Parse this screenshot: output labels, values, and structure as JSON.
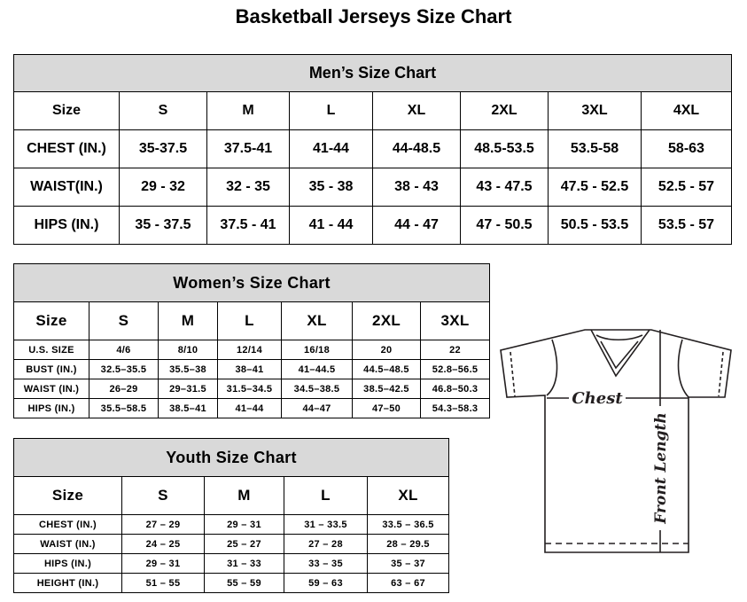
{
  "title": "Basketball Jerseys Size Chart",
  "men": {
    "caption": "Men’s Size Chart",
    "header": [
      "Size",
      "S",
      "M",
      "L",
      "XL",
      "2XL",
      "3XL",
      "4XL"
    ],
    "rows": [
      [
        "CHEST (IN.)",
        "35-37.5",
        "37.5-41",
        "41-44",
        "44-48.5",
        "48.5-53.5",
        "53.5-58",
        "58-63"
      ],
      [
        "WAIST(IN.)",
        "29 - 32",
        "32 - 35",
        "35 - 38",
        "38 - 43",
        "43 - 47.5",
        "47.5 - 52.5",
        "52.5 - 57"
      ],
      [
        "HIPS (IN.)",
        "35 - 37.5",
        "37.5 - 41",
        "41 - 44",
        "44 - 47",
        "47 - 50.5",
        "50.5 - 53.5",
        "53.5 - 57"
      ]
    ]
  },
  "women": {
    "caption": "Women’s Size Chart",
    "header": [
      "Size",
      "S",
      "M",
      "L",
      "XL",
      "2XL",
      "3XL"
    ],
    "rows": [
      [
        "U.S. SIZE",
        "4/6",
        "8/10",
        "12/14",
        "16/18",
        "20",
        "22"
      ],
      [
        "BUST (IN.)",
        "32.5–35.5",
        "35.5–38",
        "38–41",
        "41–44.5",
        "44.5–48.5",
        "52.8–56.5"
      ],
      [
        "WAIST (IN.)",
        "26–29",
        "29–31.5",
        "31.5–34.5",
        "34.5–38.5",
        "38.5–42.5",
        "46.8–50.3"
      ],
      [
        "HIPS (IN.)",
        "35.5–58.5",
        "38.5–41",
        "41–44",
        "44–47",
        "47–50",
        "54.3–58.3"
      ]
    ]
  },
  "youth": {
    "caption": "Youth Size Chart",
    "header": [
      "Size",
      "S",
      "M",
      "L",
      "XL"
    ],
    "rows": [
      [
        "CHEST (IN.)",
        "27 – 29",
        "29 – 31",
        "31 – 33.5",
        "33.5 – 36.5"
      ],
      [
        "WAIST (IN.)",
        "24 – 25",
        "25 – 27",
        "27 – 28",
        "28 – 29.5"
      ],
      [
        "HIPS (IN.)",
        "29 – 31",
        "31 – 33",
        "33 – 35",
        "35 – 37"
      ],
      [
        "HEIGHT (IN.)",
        "51 – 55",
        "55 – 59",
        "59 – 63",
        "63 – 67"
      ]
    ]
  },
  "diagram": {
    "chest_label": "Chest",
    "length_label": "Front Length"
  }
}
